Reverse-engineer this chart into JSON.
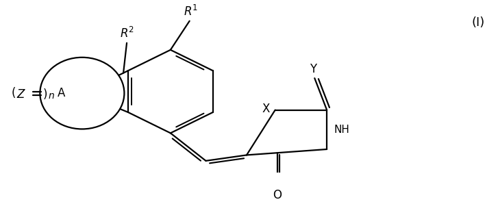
{
  "bg_color": "#ffffff",
  "line_color": "#000000",
  "line_width": 1.6,
  "fig_width": 7.27,
  "fig_height": 2.95,
  "dpi": 100,
  "label_I": "(I)",
  "label_R2": "R",
  "label_R1": "R",
  "label_X": "X",
  "label_Y": "Y",
  "label_NH": "NH",
  "label_O": "O",
  "label_Z": "Z",
  "label_n": "n",
  "label_A": "A"
}
